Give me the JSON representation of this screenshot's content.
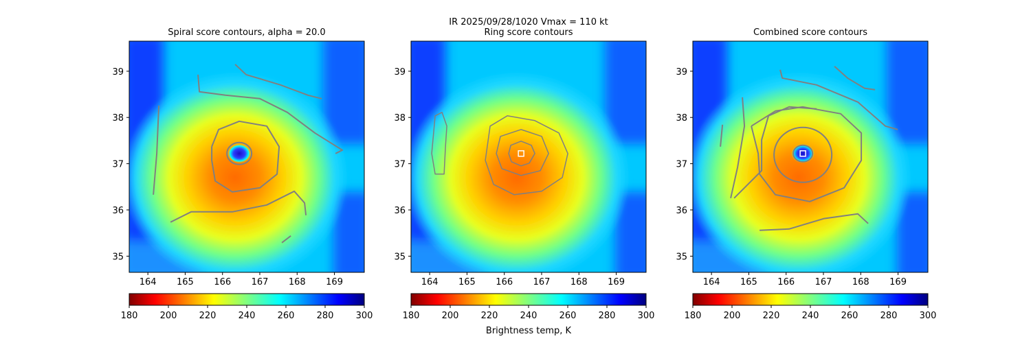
{
  "figure": {
    "suptitle_line1": "IR  2025/09/28/1020    Vmax = 110 kt",
    "colorbar_label": "Brightness temp, K"
  },
  "chart_data": [
    {
      "type": "heatmap",
      "title": "Spiral score contours, alpha = 20.0",
      "x_ticks": [
        164,
        165,
        166,
        167,
        168,
        169
      ],
      "y_ticks": [
        35,
        36,
        37,
        38,
        39
      ],
      "xlim": [
        163.5,
        169.8
      ],
      "ylim": [
        34.65,
        39.65
      ],
      "center": [
        166.45,
        37.22
      ],
      "colorbar": {
        "min": 180,
        "max": 300,
        "ticks": [
          180,
          200,
          220,
          240,
          260,
          280,
          300
        ],
        "colormap": "jet_r"
      },
      "overlay": "spiral",
      "marker": null
    },
    {
      "type": "heatmap",
      "title": "Ring score contours",
      "x_ticks": [
        164,
        165,
        166,
        167,
        168,
        169
      ],
      "y_ticks": [
        35,
        36,
        37,
        38,
        39
      ],
      "xlim": [
        163.5,
        169.8
      ],
      "ylim": [
        34.65,
        39.65
      ],
      "center": [
        166.45,
        37.22
      ],
      "colorbar": {
        "min": 180,
        "max": 300,
        "ticks": [
          180,
          200,
          220,
          240,
          260,
          280,
          300
        ],
        "colormap": "jet_r"
      },
      "overlay": "ring",
      "marker": [
        166.45,
        37.22
      ]
    },
    {
      "type": "heatmap",
      "title": "Combined score contours",
      "x_ticks": [
        164,
        165,
        166,
        167,
        168,
        169
      ],
      "y_ticks": [
        35,
        36,
        37,
        38,
        39
      ],
      "xlim": [
        163.5,
        169.8
      ],
      "ylim": [
        34.65,
        39.65
      ],
      "center": [
        166.45,
        37.22
      ],
      "colorbar": {
        "min": 180,
        "max": 300,
        "ticks": [
          180,
          200,
          220,
          240,
          260,
          280,
          300
        ],
        "colormap": "jet_r"
      },
      "overlay": "combined",
      "marker": [
        166.45,
        37.22
      ]
    }
  ],
  "colors": {
    "contour": "#808080",
    "marker": "#ffffff"
  }
}
